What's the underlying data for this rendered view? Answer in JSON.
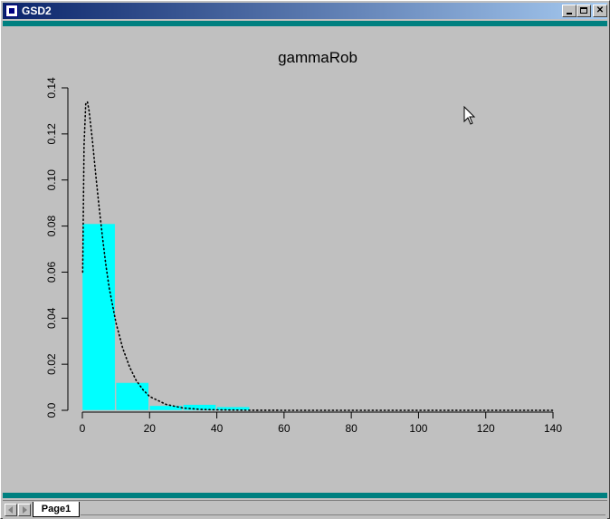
{
  "window": {
    "title": "GSD2",
    "minimize_label": "",
    "maximize_label": "",
    "close_label": "✕"
  },
  "tabs": [
    {
      "label": "Page1",
      "active": true
    }
  ],
  "chart_data": {
    "type": "bar",
    "title": "gammaRob",
    "xlabel": "",
    "ylabel": "",
    "xlim": [
      0,
      140
    ],
    "ylim": [
      0,
      0.14
    ],
    "x_ticks": [
      0,
      20,
      40,
      60,
      80,
      100,
      120,
      140
    ],
    "x_tick_labels": [
      "0",
      "20",
      "40",
      "60",
      "80",
      "100",
      "120",
      "140"
    ],
    "y_ticks": [
      0,
      0.02,
      0.04,
      0.06,
      0.08,
      0.1,
      0.12,
      0.14
    ],
    "y_tick_labels": [
      "0.0",
      "0.02",
      "0.04",
      "0.06",
      "0.08",
      "0.10",
      "0.12",
      "0.14"
    ],
    "histogram": {
      "bin_edges": [
        0,
        10,
        20,
        30,
        40,
        50
      ],
      "values": [
        0.081,
        0.012,
        0.002,
        0.0025,
        0.0015
      ],
      "color": "#00ffff"
    },
    "density_curve": {
      "style": "dotted",
      "color": "#000000",
      "x": [
        0.1,
        0.5,
        1,
        1.5,
        2,
        3,
        4,
        5,
        6,
        7,
        8,
        10,
        12,
        14,
        16,
        18,
        20,
        25,
        30,
        35,
        40,
        50,
        60,
        80,
        100,
        120,
        140
      ],
      "y": [
        0.06,
        0.115,
        0.133,
        0.134,
        0.13,
        0.117,
        0.102,
        0.088,
        0.075,
        0.063,
        0.053,
        0.038,
        0.027,
        0.019,
        0.013,
        0.009,
        0.006,
        0.0025,
        0.001,
        0.0004,
        0.0002,
        3e-05,
        0.0,
        0.0,
        0.0,
        0.0,
        0.0
      ]
    }
  }
}
